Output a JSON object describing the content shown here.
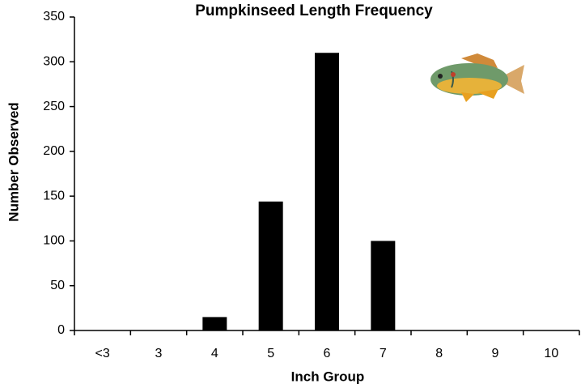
{
  "chart_data": {
    "type": "bar",
    "title": "Pumpkinseed Length Frequency",
    "x_label": "Inch Group",
    "y_label": "Number Observed",
    "categories": [
      "<3",
      "3",
      "4",
      "5",
      "6",
      "7",
      "8",
      "9",
      "10"
    ],
    "values": [
      0,
      0,
      15,
      144,
      310,
      100,
      0,
      0,
      0
    ],
    "color": "#000000",
    "ylim": [
      0,
      350
    ],
    "yticks": [
      0,
      50,
      100,
      150,
      200,
      250,
      300,
      350
    ],
    "grid": false
  }
}
